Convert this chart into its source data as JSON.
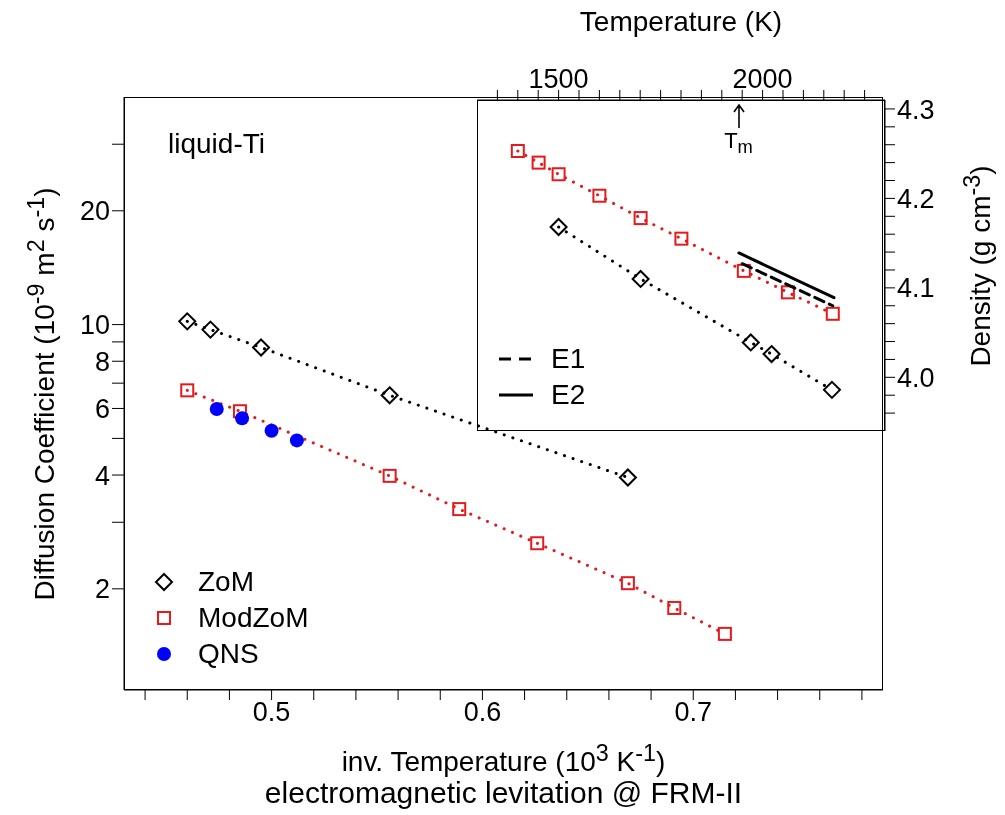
{
  "chart_data": [
    {
      "type": "scatter",
      "xlabel": "inv. Temperature  (10$^{3}$ K$^{-1}$)",
      "ylabel": "Diffusion Coefficient  (10$^{-9}$ m$^{2}$ s$^{-1}$)",
      "annotations": [
        "liquid-Ti",
        "electromagnetic  levitation @ FRM-II"
      ],
      "log": "y",
      "legend": "bottom left",
      "xlim": [
        0.43,
        0.79
      ],
      "xticks": [
        {
          "value": 0.44,
          "label": null
        },
        {
          "value": 0.46,
          "label": null
        },
        {
          "value": 0.48,
          "label": null
        },
        0.5,
        {
          "value": 0.52,
          "label": null
        },
        {
          "value": 0.54,
          "label": null
        },
        {
          "value": 0.56,
          "label": null
        },
        {
          "value": 0.58,
          "label": null
        },
        0.6,
        {
          "value": 0.62,
          "label": null
        },
        {
          "value": 0.64,
          "label": null
        },
        {
          "value": 0.66,
          "label": null
        },
        {
          "value": 0.68,
          "label": null
        },
        0.7,
        {
          "value": 0.72,
          "label": null
        },
        {
          "value": 0.74,
          "label": null
        },
        {
          "value": 0.76,
          "label": null
        },
        {
          "value": 0.78,
          "label": null
        }
      ],
      "ylim": [
        1.08,
        40
      ],
      "yticks": [
        2,
        {
          "value": 3,
          "label": null
        },
        4,
        {
          "value": 5,
          "label": null
        },
        6,
        {
          "value": 7,
          "label": null
        },
        8,
        {
          "value": 9,
          "label": null
        },
        10,
        20,
        {
          "value": 30,
          "label": null
        }
      ],
      "series": [
        {
          "name": "ZoM",
          "type": "line",
          "marker": "diamond",
          "line_style": "dotted",
          "color": "#000000",
          "x": [
            0.46,
            0.471,
            0.495,
            0.556,
            0.669
          ],
          "values": [
            10.2,
            9.7,
            8.7,
            6.5,
            3.94
          ]
        },
        {
          "name": "ModZoM",
          "type": "line",
          "marker": "square",
          "line_style": "dotted",
          "color": "#e41a1c",
          "x": [
            0.46,
            0.485,
            0.556,
            0.589,
            0.626,
            0.669,
            0.691,
            0.715
          ],
          "values": [
            6.7,
            5.9,
            3.98,
            3.25,
            2.64,
            2.07,
            1.78,
            1.52
          ]
        },
        {
          "name": "QNS",
          "type": "scatter",
          "marker": "circle",
          "color": "#0000ff",
          "x": [
            0.474,
            0.486,
            0.5,
            0.512
          ],
          "values": [
            5.98,
            5.65,
            5.24,
            4.94
          ]
        }
      ]
    },
    {
      "type": "scatter",
      "xlabel": "Temperature  (K)",
      "ylabel": "Density  (g cm$^{-3}$)",
      "annotations": [
        {
          "text": "T$_{m}$",
          "x": 1941
        }
      ],
      "legend": "bottom left",
      "xlim": [
        1300,
        2300
      ],
      "xticks": [
        {
          "value": 1350,
          "label": null
        },
        {
          "value": 1400,
          "label": null
        },
        {
          "value": 1450,
          "label": null
        },
        1500,
        {
          "value": 1550,
          "label": null
        },
        {
          "value": 1600,
          "label": null
        },
        {
          "value": 1650,
          "label": null
        },
        {
          "value": 1700,
          "label": null
        },
        {
          "value": 1750,
          "label": null
        },
        {
          "value": 1800,
          "label": null
        },
        {
          "value": 1850,
          "label": null
        },
        {
          "value": 1900,
          "label": null
        },
        {
          "value": 1950,
          "label": null
        },
        2000,
        {
          "value": 2050,
          "label": null
        },
        {
          "value": 2100,
          "label": null
        },
        {
          "value": 2150,
          "label": null
        },
        {
          "value": 2200,
          "label": null
        },
        {
          "value": 2250,
          "label": null
        }
      ],
      "ylim": [
        3.94,
        4.31
      ],
      "yticks": [
        {
          "value": 3.96,
          "label": null
        },
        {
          "value": 3.98,
          "label": null
        },
        {
          "value": 4,
          "label": "4.0"
        },
        {
          "value": 4.02,
          "label": null
        },
        {
          "value": 4.04,
          "label": null
        },
        {
          "value": 4.06,
          "label": null
        },
        {
          "value": 4.08,
          "label": null
        },
        4.1,
        {
          "value": 4.12,
          "label": null
        },
        {
          "value": 4.14,
          "label": null
        },
        {
          "value": 4.16,
          "label": null
        },
        {
          "value": 4.18,
          "label": null
        },
        4.2,
        {
          "value": 4.22,
          "label": null
        },
        {
          "value": 4.24,
          "label": null
        },
        {
          "value": 4.26,
          "label": null
        },
        {
          "value": 4.28,
          "label": null
        },
        4.3
      ],
      "series": [
        {
          "type": "line",
          "marker": "square",
          "line_style": "dotted",
          "color": "#e41a1c",
          "x": [
            1400,
            1451,
            1500,
            1600,
            1701,
            1801,
            1954,
            2062,
            2172
          ],
          "values": [
            4.253,
            4.24,
            4.227,
            4.203,
            4.178,
            4.155,
            4.119,
            4.095,
            4.071
          ]
        },
        {
          "type": "line",
          "marker": "diamond",
          "line_style": "dotted",
          "color": "#000000",
          "x": [
            1500,
            1701,
            1971,
            2022,
            2170
          ],
          "values": [
            4.168,
            4.11,
            4.039,
            4.026,
            3.986
          ]
        },
        {
          "name": "E1",
          "type": "line",
          "marker": "none",
          "line_style": "dashed",
          "color": "#000000",
          "x": [
            1950,
            2172
          ],
          "values": [
            4.127,
            4.08
          ]
        },
        {
          "name": "E2",
          "type": "line",
          "marker": "none",
          "line_style": "solid",
          "color": "#000000",
          "x": [
            1942,
            2175
          ],
          "values": [
            4.139,
            4.089
          ]
        }
      ]
    }
  ]
}
